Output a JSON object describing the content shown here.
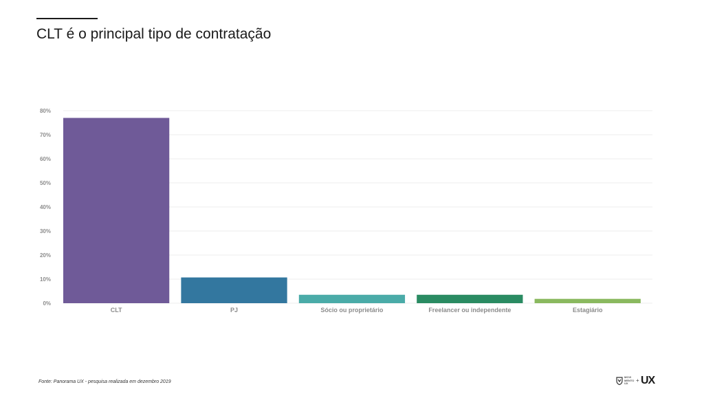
{
  "slide": {
    "title": "CLT é o principal tipo de contratação",
    "source": "Fonte: Panorama UX - pesquisa realizada em dezembro 2019"
  },
  "logo": {
    "small_text": "MOVI MENTO UX",
    "plus": "+",
    "big_text": "UX"
  },
  "chart_data": {
    "type": "bar",
    "categories": [
      "CLT",
      "PJ",
      "Sócio ou proprietário",
      "Freelancer ou independente",
      "Estagiário"
    ],
    "values": [
      77,
      10.7,
      3.5,
      3.5,
      1.8
    ],
    "colors": [
      "#6f5a98",
      "#33779f",
      "#4aaba8",
      "#2a8b62",
      "#8ab95f"
    ],
    "yticks": [
      "0%",
      "10%",
      "20%",
      "30%",
      "40%",
      "50%",
      "60%",
      "70%",
      "80%"
    ],
    "ylim": [
      0,
      80
    ],
    "grid": true,
    "legend": "none"
  }
}
